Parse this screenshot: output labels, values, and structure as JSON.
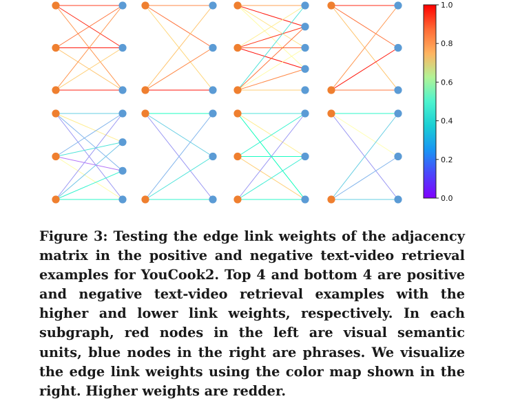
{
  "figure": {
    "colorbar": {
      "ticks": [
        "0.0",
        "0.2",
        "0.4",
        "0.6",
        "0.8",
        "1.0"
      ],
      "range": [
        0,
        1
      ],
      "colormap": "rainbow"
    },
    "node_colors": {
      "visual": "#ef7f2f",
      "phrase": "#5b9bd5"
    },
    "subgraphs": [
      {
        "group": "positive",
        "left": 3,
        "right": 3,
        "edges": [
          [
            0,
            0,
            0.92
          ],
          [
            0,
            1,
            0.95
          ],
          [
            0,
            2,
            0.8
          ],
          [
            1,
            0,
            0.85
          ],
          [
            1,
            1,
            0.97
          ],
          [
            1,
            2,
            0.72
          ],
          [
            2,
            0,
            0.8
          ],
          [
            2,
            1,
            0.7
          ],
          [
            2,
            2,
            0.96
          ]
        ]
      },
      {
        "group": "positive",
        "left": 2,
        "right": 3,
        "edges": [
          [
            0,
            0,
            0.82
          ],
          [
            0,
            1,
            0.85
          ],
          [
            0,
            2,
            0.68
          ],
          [
            1,
            0,
            0.72
          ],
          [
            1,
            1,
            0.82
          ],
          [
            1,
            2,
            0.98
          ]
        ]
      },
      {
        "group": "positive",
        "left": 3,
        "right": 5,
        "edges": [
          [
            0,
            0,
            0.78
          ],
          [
            0,
            1,
            0.97
          ],
          [
            0,
            2,
            0.65
          ],
          [
            0,
            3,
            0.55
          ],
          [
            1,
            1,
            0.93
          ],
          [
            1,
            2,
            0.88
          ],
          [
            1,
            3,
            0.98
          ],
          [
            1,
            0,
            0.62
          ],
          [
            2,
            0,
            0.35
          ],
          [
            2,
            1,
            0.85
          ],
          [
            2,
            2,
            0.55
          ],
          [
            2,
            3,
            0.82
          ],
          [
            2,
            4,
            0.7
          ]
        ]
      },
      {
        "group": "positive",
        "left": 2,
        "right": 3,
        "edges": [
          [
            0,
            0,
            0.95
          ],
          [
            0,
            1,
            0.85
          ],
          [
            0,
            2,
            0.72
          ],
          [
            1,
            0,
            0.8
          ],
          [
            1,
            1,
            0.97
          ],
          [
            1,
            2,
            0.85
          ]
        ]
      },
      {
        "group": "negative",
        "left": 3,
        "right": 4,
        "edges": [
          [
            0,
            0,
            0.3
          ],
          [
            0,
            1,
            0.62
          ],
          [
            0,
            2,
            0.25
          ],
          [
            0,
            3,
            0.2
          ],
          [
            1,
            0,
            0.25
          ],
          [
            1,
            1,
            0.35
          ],
          [
            1,
            2,
            0.15
          ],
          [
            1,
            3,
            0.55
          ],
          [
            2,
            0,
            0.2
          ],
          [
            2,
            1,
            0.28
          ],
          [
            2,
            2,
            0.4
          ],
          [
            2,
            3,
            0.42
          ]
        ]
      },
      {
        "group": "negative",
        "left": 2,
        "right": 3,
        "edges": [
          [
            0,
            0,
            0.45
          ],
          [
            0,
            1,
            0.3
          ],
          [
            0,
            2,
            0.2
          ],
          [
            1,
            0,
            0.25
          ],
          [
            1,
            1,
            0.35
          ],
          [
            1,
            2,
            0.4
          ]
        ]
      },
      {
        "group": "negative",
        "left": 3,
        "right": 3,
        "edges": [
          [
            0,
            0,
            0.35
          ],
          [
            0,
            1,
            0.62
          ],
          [
            0,
            2,
            0.48
          ],
          [
            1,
            0,
            0.4
          ],
          [
            1,
            1,
            0.45
          ],
          [
            1,
            2,
            0.7
          ],
          [
            2,
            0,
            0.2
          ],
          [
            2,
            1,
            0.38
          ],
          [
            2,
            2,
            0.42
          ]
        ]
      },
      {
        "group": "negative",
        "left": 2,
        "right": 3,
        "edges": [
          [
            0,
            0,
            0.42
          ],
          [
            0,
            1,
            0.5
          ],
          [
            0,
            2,
            0.2
          ],
          [
            1,
            0,
            0.3
          ],
          [
            1,
            1,
            0.25
          ],
          [
            1,
            2,
            0.3
          ]
        ]
      }
    ]
  },
  "caption": {
    "text": "Figure 3: Testing the edge link weights of the adjacency matrix in the positive and negative text-video retrieval examples for YouCook2. Top 4 and bottom 4 are positive and negative text-video retrieval examples with the higher and lower link weights, respectively. In each subgraph, red nodes in the left are visual semantic units, blue nodes in the right are phrases. We visualize the edge link weights using the color map shown in the right. Higher weights are redder."
  }
}
